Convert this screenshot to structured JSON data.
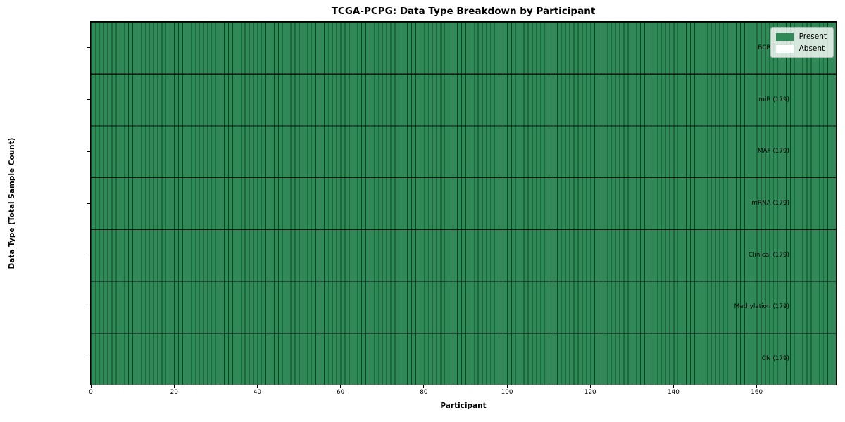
{
  "chart_data": {
    "type": "heatmap",
    "title": "TCGA-PCPG: Data Type Breakdown by Participant",
    "xlabel": "Participant",
    "ylabel": "Data Type (Total Sample Count)",
    "x_max": 179,
    "x_ticks": [
      0,
      20,
      40,
      60,
      80,
      100,
      120,
      140,
      160
    ],
    "rows": [
      {
        "label": "BCR (179)",
        "data_type": "BCR",
        "total_sample_count": 179,
        "present_count": 179,
        "absent_count": 0
      },
      {
        "label": "miR (179)",
        "data_type": "miR",
        "total_sample_count": 179,
        "present_count": 179,
        "absent_count": 0
      },
      {
        "label": "MAF (179)",
        "data_type": "MAF",
        "total_sample_count": 179,
        "present_count": 179,
        "absent_count": 0
      },
      {
        "label": "mRNA (179)",
        "data_type": "mRNA",
        "total_sample_count": 179,
        "present_count": 179,
        "absent_count": 0
      },
      {
        "label": "Clinical (179)",
        "data_type": "Clinical",
        "total_sample_count": 179,
        "present_count": 179,
        "absent_count": 0
      },
      {
        "label": "Methylation (179)",
        "data_type": "Methylation",
        "total_sample_count": 179,
        "present_count": 179,
        "absent_count": 0
      },
      {
        "label": "CN (179)",
        "data_type": "CN",
        "total_sample_count": 179,
        "present_count": 179,
        "absent_count": 0
      }
    ],
    "cell_values_note": "all cells Present for every participant in every row",
    "legend": [
      {
        "label": "Present",
        "color": "#2e8b57"
      },
      {
        "label": "Absent",
        "color": "#ffffff"
      }
    ],
    "legend_position": "upper right",
    "colors": {
      "present": "#2e8b57",
      "absent": "#ffffff",
      "cell_edge": "rgba(0,0,0,0.55)",
      "row_edge": "rgba(0,0,0,0.85)",
      "spine": "#000000"
    }
  }
}
